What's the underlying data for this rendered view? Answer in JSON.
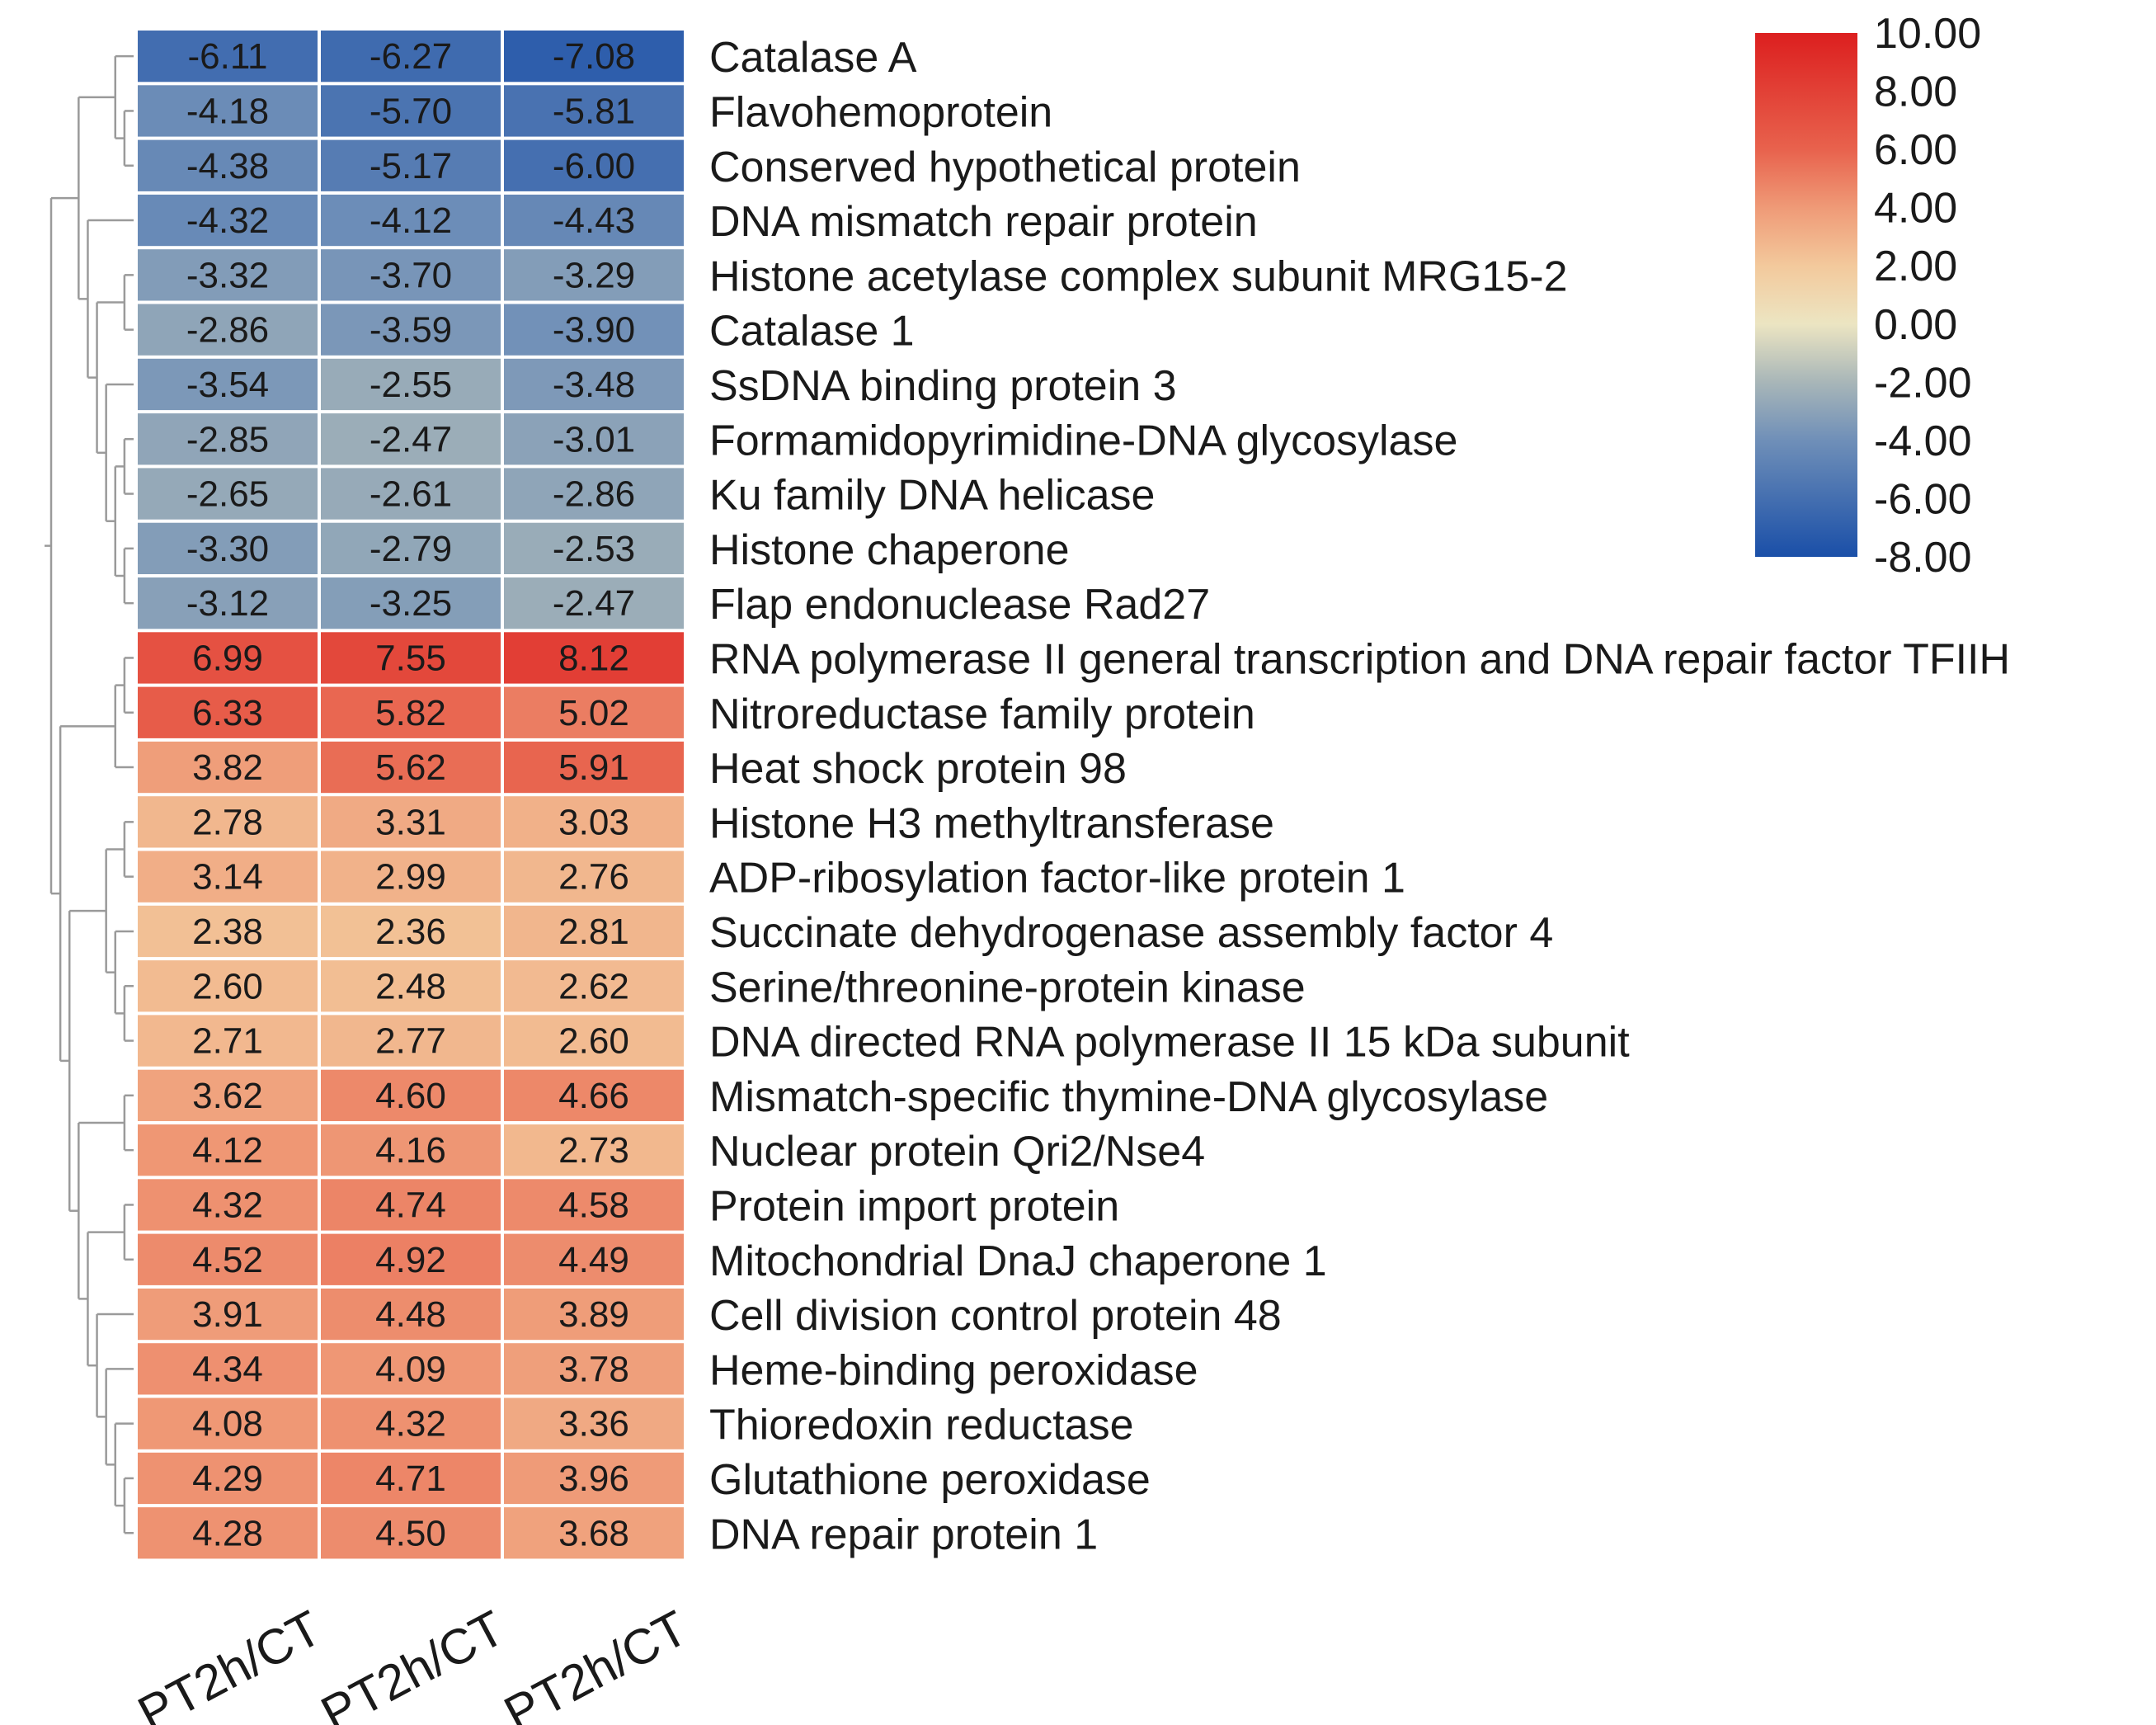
{
  "chart_data": {
    "type": "heatmap",
    "columns": [
      "PT2h/CT",
      "PT2h/CT",
      "PT2h/CT"
    ],
    "rows": [
      {
        "label": "Catalase A",
        "values": [
          -6.11,
          -6.27,
          -7.08
        ],
        "text": [
          "-6.11",
          "-6.27",
          "-7.08"
        ]
      },
      {
        "label": "Flavohemoprotein",
        "values": [
          -4.18,
          -5.7,
          -5.81
        ],
        "text": [
          "-4.18",
          "-5.70",
          "-5.81"
        ]
      },
      {
        "label": "Conserved hypothetical protein",
        "values": [
          -4.38,
          -5.17,
          -6.0
        ],
        "text": [
          "-4.38",
          "-5.17",
          "-6.00"
        ]
      },
      {
        "label": "DNA mismatch repair protein",
        "values": [
          -4.32,
          -4.12,
          -4.43
        ],
        "text": [
          "-4.32",
          "-4.12",
          "-4.43"
        ]
      },
      {
        "label": "Histone acetylase complex subunit MRG15-2",
        "values": [
          -3.32,
          -3.7,
          -3.29
        ],
        "text": [
          "-3.32",
          "-3.70",
          "-3.29"
        ]
      },
      {
        "label": "Catalase 1",
        "values": [
          -2.86,
          -3.59,
          -3.9
        ],
        "text": [
          "-2.86",
          "-3.59",
          "-3.90"
        ]
      },
      {
        "label": "SsDNA binding protein 3",
        "values": [
          -3.54,
          -2.55,
          -3.48
        ],
        "text": [
          "-3.54",
          "-2.55",
          "-3.48"
        ]
      },
      {
        "label": "Formamidopyrimidine-DNA glycosylase",
        "values": [
          -2.85,
          -2.47,
          -3.01
        ],
        "text": [
          "-2.85",
          "-2.47",
          "-3.01"
        ]
      },
      {
        "label": "Ku family DNA helicase",
        "values": [
          -2.65,
          -2.61,
          -2.86
        ],
        "text": [
          "-2.65",
          "-2.61",
          "-2.86"
        ]
      },
      {
        "label": "Histone chaperone",
        "values": [
          -3.3,
          -2.79,
          -2.53
        ],
        "text": [
          "-3.30",
          "-2.79",
          "-2.53"
        ]
      },
      {
        "label": "Flap endonuclease Rad27",
        "values": [
          -3.12,
          -3.25,
          -2.47
        ],
        "text": [
          "-3.12",
          "-3.25",
          "-2.47"
        ]
      },
      {
        "label": "RNA polymerase II general transcription and DNA repair factor TFIIH",
        "values": [
          6.99,
          7.55,
          8.12
        ],
        "text": [
          "6.99",
          "7.55",
          "8.12"
        ]
      },
      {
        "label": "Nitroreductase family protein",
        "values": [
          6.33,
          5.82,
          5.02
        ],
        "text": [
          "6.33",
          "5.82",
          "5.02"
        ]
      },
      {
        "label": "Heat shock protein 98",
        "values": [
          3.82,
          5.62,
          5.91
        ],
        "text": [
          "3.82",
          "5.62",
          "5.91"
        ]
      },
      {
        "label": "Histone H3 methyltransferase",
        "values": [
          2.78,
          3.31,
          3.03
        ],
        "text": [
          "2.78",
          "3.31",
          "3.03"
        ]
      },
      {
        "label": "ADP-ribosylation factor-like protein 1",
        "values": [
          3.14,
          2.99,
          2.76
        ],
        "text": [
          "3.14",
          "2.99",
          "2.76"
        ]
      },
      {
        "label": "Succinate dehydrogenase assembly factor 4",
        "values": [
          2.38,
          2.36,
          2.81
        ],
        "text": [
          "2.38",
          "2.36",
          "2.81"
        ]
      },
      {
        "label": "Serine/threonine-protein kinase",
        "values": [
          2.6,
          2.48,
          2.62
        ],
        "text": [
          "2.60",
          "2.48",
          "2.62"
        ]
      },
      {
        "label": "DNA directed RNA polymerase II 15 kDa subunit",
        "values": [
          2.71,
          2.77,
          2.6
        ],
        "text": [
          "2.71",
          "2.77",
          "2.60"
        ]
      },
      {
        "label": "Mismatch-specific thymine-DNA glycosylase",
        "values": [
          3.62,
          4.6,
          4.66
        ],
        "text": [
          "3.62",
          "4.60",
          "4.66"
        ]
      },
      {
        "label": "Nuclear protein Qri2/Nse4",
        "values": [
          4.12,
          4.16,
          2.73
        ],
        "text": [
          "4.12",
          "4.16",
          "2.73"
        ]
      },
      {
        "label": "Protein import protein",
        "values": [
          4.32,
          4.74,
          4.58
        ],
        "text": [
          "4.32",
          "4.74",
          "4.58"
        ]
      },
      {
        "label": "Mitochondrial DnaJ chaperone 1",
        "values": [
          4.52,
          4.92,
          4.49
        ],
        "text": [
          "4.52",
          "4.92",
          "4.49"
        ]
      },
      {
        "label": "Cell division control protein 48",
        "values": [
          3.91,
          4.48,
          3.89
        ],
        "text": [
          "3.91",
          "4.48",
          "3.89"
        ]
      },
      {
        "label": "Heme-binding peroxidase",
        "values": [
          4.34,
          4.09,
          3.78
        ],
        "text": [
          "4.34",
          "4.09",
          "3.78"
        ]
      },
      {
        "label": "Thioredoxin reductase",
        "values": [
          4.08,
          4.32,
          3.36
        ],
        "text": [
          "4.08",
          "4.32",
          "3.36"
        ]
      },
      {
        "label": "Glutathione peroxidase",
        "values": [
          4.29,
          4.71,
          3.96
        ],
        "text": [
          "4.29",
          "4.71",
          "3.96"
        ]
      },
      {
        "label": "DNA repair protein 1",
        "values": [
          4.28,
          4.5,
          3.68
        ],
        "text": [
          "4.28",
          "4.50",
          "3.68"
        ]
      }
    ],
    "color_scale": {
      "min": -8.0,
      "max": 10.0,
      "ticks": [
        {
          "value": 10,
          "label": "10.00"
        },
        {
          "value": 8,
          "label": "8.00"
        },
        {
          "value": 6,
          "label": "6.00"
        },
        {
          "value": 4,
          "label": "4.00"
        },
        {
          "value": 2,
          "label": "2.00"
        },
        {
          "value": 0,
          "label": "0.00"
        },
        {
          "value": -2,
          "label": "-2.00"
        },
        {
          "value": -4,
          "label": "-4.00"
        },
        {
          "value": -6,
          "label": "-6.00"
        },
        {
          "value": -8,
          "label": "-8.00"
        }
      ],
      "stops": [
        {
          "value": -8,
          "color": "#1a4fa8"
        },
        {
          "value": -4,
          "color": "#6f8fb8"
        },
        {
          "value": -2,
          "color": "#a8b6b8"
        },
        {
          "value": 0,
          "color": "#ece5c2"
        },
        {
          "value": 2,
          "color": "#f3c99c"
        },
        {
          "value": 4,
          "color": "#ef9a77"
        },
        {
          "value": 6,
          "color": "#e8624d"
        },
        {
          "value": 10,
          "color": "#dc1f1f"
        }
      ],
      "legend_position": "top-right"
    },
    "dendrogram": {
      "description": "hierarchical clustering of rows",
      "tree": [
        [
          [
            0,
            [
              1,
              2
            ]
          ],
          [
            3,
            [
              [
                4,
                5
              ],
              [
                6,
                [
                  [
                    7,
                    8
                  ],
                  [
                    9,
                    10
                  ]
                ]
              ]
            ]
          ]
        ],
        [
          [
            [
              11,
              12
            ],
            13
          ],
          [
            [
              [
                14,
                15
              ],
              [
                16,
                [
                  17,
                  18
                ]
              ]
            ],
            [
              [
                19,
                20
              ],
              [
                [
                  21,
                  22
                ],
                [
                  23,
                  [
                    24,
                    [
                      25,
                      [
                        26,
                        27
                      ]
                    ]
                  ]
                ]
              ]
            ]
          ]
        ]
      ]
    }
  }
}
